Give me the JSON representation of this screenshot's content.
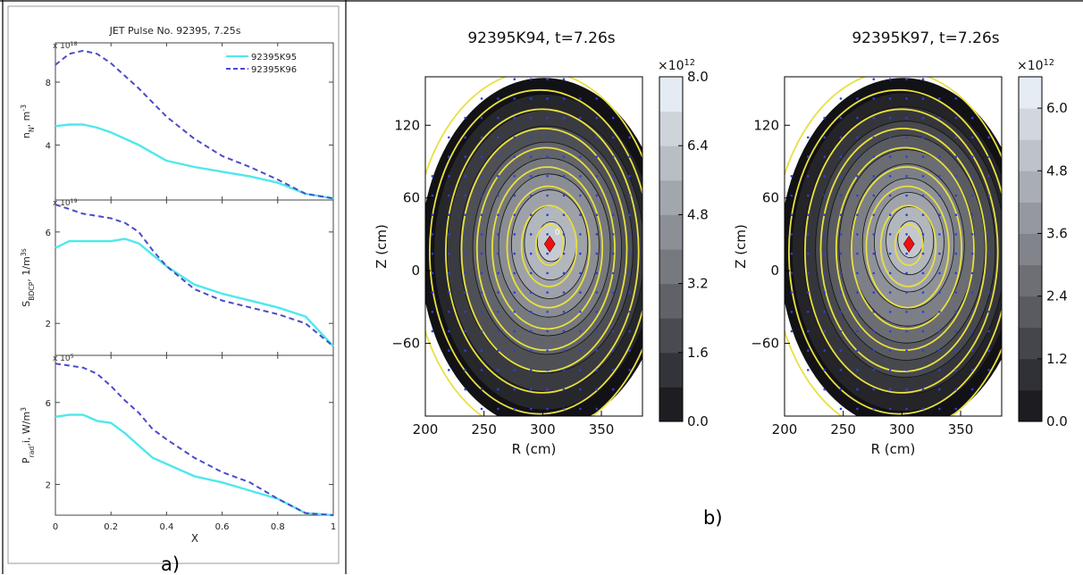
{
  "labels": {
    "panel_a": "a)",
    "panel_b": "b)"
  },
  "chart_data": [
    {
      "type": "line",
      "title": "JET Pulse No. 92395, 7.25s",
      "legend": [
        {
          "name": "92395K95",
          "color": "#4fe8ec",
          "dash": "solid"
        },
        {
          "name": "92395K96",
          "color": "#4b4bc8",
          "dash": "dashed"
        }
      ],
      "legend_position": "top-right",
      "xlabel": "X",
      "xlim": [
        0,
        1
      ],
      "xticks": [
        "0",
        "0.2",
        "0.4",
        "0.6",
        "0.8",
        "1"
      ],
      "panels": [
        {
          "ylabel": "n_N, m^-3",
          "multiplier": "x 10^18",
          "ylim": [
            0.5,
            10.5
          ],
          "yticks": [
            4,
            8
          ],
          "series": [
            {
              "name": "92395K95",
              "x": [
                0,
                0.05,
                0.1,
                0.15,
                0.2,
                0.3,
                0.4,
                0.5,
                0.6,
                0.7,
                0.8,
                0.9,
                1.0
              ],
              "y": [
                5.2,
                5.3,
                5.3,
                5.1,
                4.8,
                4.0,
                3.0,
                2.6,
                2.3,
                2.0,
                1.6,
                0.9,
                0.6
              ]
            },
            {
              "name": "92395K96",
              "x": [
                0,
                0.05,
                0.1,
                0.15,
                0.2,
                0.3,
                0.4,
                0.5,
                0.6,
                0.7,
                0.8,
                0.9,
                1.0
              ],
              "y": [
                9.1,
                9.8,
                10.0,
                9.8,
                9.2,
                7.6,
                5.8,
                4.4,
                3.3,
                2.6,
                1.8,
                0.9,
                0.6
              ]
            }
          ]
        },
        {
          "ylabel": "S_BDCP, 1/m^3s",
          "multiplier": "x 10^19",
          "ylim": [
            0.6,
            7.4
          ],
          "yticks": [
            2,
            6
          ],
          "series": [
            {
              "name": "92395K95",
              "x": [
                0,
                0.05,
                0.1,
                0.15,
                0.2,
                0.25,
                0.3,
                0.35,
                0.4,
                0.5,
                0.6,
                0.7,
                0.8,
                0.9,
                1.0
              ],
              "y": [
                5.3,
                5.6,
                5.6,
                5.6,
                5.6,
                5.7,
                5.5,
                5.0,
                4.5,
                3.7,
                3.3,
                3.0,
                2.7,
                2.3,
                1.0
              ]
            },
            {
              "name": "92395K96",
              "x": [
                0,
                0.05,
                0.1,
                0.15,
                0.2,
                0.25,
                0.3,
                0.35,
                0.4,
                0.5,
                0.6,
                0.7,
                0.8,
                0.9,
                1.0
              ],
              "y": [
                7.2,
                7.0,
                6.8,
                6.7,
                6.6,
                6.4,
                6.0,
                5.2,
                4.5,
                3.5,
                3.0,
                2.7,
                2.4,
                2.0,
                1.0
              ]
            }
          ]
        },
        {
          "ylabel": "P_rad,i, W/m^3",
          "multiplier": "x 10^5",
          "ylim": [
            0.5,
            8.3
          ],
          "yticks": [
            2,
            6
          ],
          "series": [
            {
              "name": "92395K95",
              "x": [
                0,
                0.05,
                0.1,
                0.15,
                0.2,
                0.25,
                0.3,
                0.35,
                0.4,
                0.5,
                0.6,
                0.7,
                0.8,
                0.9,
                1.0
              ],
              "y": [
                5.3,
                5.4,
                5.4,
                5.1,
                5.0,
                4.5,
                3.9,
                3.3,
                3.0,
                2.4,
                2.1,
                1.7,
                1.3,
                0.6,
                0.5
              ]
            },
            {
              "name": "92395K96",
              "x": [
                0,
                0.05,
                0.1,
                0.15,
                0.2,
                0.25,
                0.3,
                0.35,
                0.4,
                0.5,
                0.6,
                0.7,
                0.8,
                0.9,
                1.0
              ],
              "y": [
                7.9,
                7.8,
                7.7,
                7.4,
                6.8,
                6.1,
                5.5,
                4.7,
                4.2,
                3.3,
                2.6,
                2.1,
                1.3,
                0.6,
                0.5
              ]
            }
          ]
        }
      ]
    },
    {
      "type": "heatmap",
      "title": "92395K94, t=7.26s",
      "xlabel": "R (cm)",
      "ylabel": "Z (cm)",
      "xlim": [
        200,
        385
      ],
      "ylim": [
        -120,
        160
      ],
      "xticks": [
        200,
        250,
        300,
        350
      ],
      "yticks": [
        -60,
        0,
        60,
        120
      ],
      "colorbar": {
        "multiplier": "×10^12",
        "ticks": [
          "0.0",
          "1.6",
          "3.2",
          "4.8",
          "6.4",
          "8.0"
        ],
        "range": [
          0,
          8.0
        ],
        "levels": 10
      },
      "magnetic_axis": {
        "R": 306,
        "Z": 22
      },
      "max_value": 7.2,
      "peak": {
        "R": 308,
        "Z": 25
      },
      "annotation": "0"
    },
    {
      "type": "heatmap",
      "title": "92395K97, t=7.26s",
      "xlabel": "R (cm)",
      "ylabel": "Z (cm)",
      "xlim": [
        200,
        385
      ],
      "ylim": [
        -120,
        160
      ],
      "xticks": [
        200,
        250,
        300,
        350
      ],
      "yticks": [
        -60,
        0,
        60,
        120
      ],
      "colorbar": {
        "multiplier": "×10^12",
        "ticks": [
          "0.0",
          "1.2",
          "2.4",
          "3.6",
          "4.8",
          "6.0"
        ],
        "range": [
          0,
          6.6
        ],
        "levels": 11
      },
      "magnetic_axis": {
        "R": 306,
        "Z": 22
      },
      "max_value": 5.8,
      "peak": {
        "R": 308,
        "Z": 27
      },
      "annotation": ""
    }
  ]
}
